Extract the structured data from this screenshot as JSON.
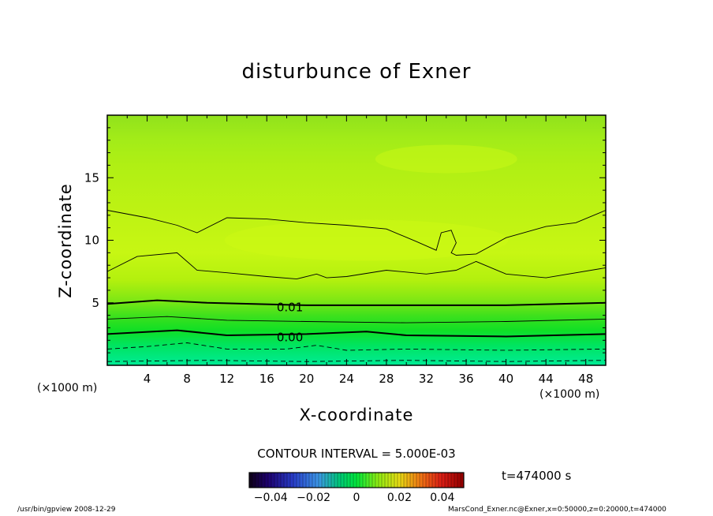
{
  "chart_data": {
    "type": "heatmap",
    "title": "disturbunce of Exner",
    "xlabel": "X-coordinate",
    "ylabel": "Z-coordinate",
    "x_unit": "(×1000 m)",
    "xlim": [
      0,
      50
    ],
    "ylim": [
      0,
      20
    ],
    "x_ticks": [
      4,
      8,
      12,
      16,
      20,
      24,
      28,
      32,
      36,
      40,
      44,
      48
    ],
    "y_ticks": [
      5,
      10,
      15
    ],
    "contour_interval_label": "CONTOUR INTERVAL = 5.000E-03",
    "contour_labels": [
      {
        "text": "0.01",
        "x": 17,
        "z": 4.7
      },
      {
        "text": "0.00",
        "x": 17,
        "z": 2.3
      }
    ],
    "contour_lines": [
      {
        "level": 0.015,
        "style": "solid",
        "points": [
          [
            0,
            7.5
          ],
          [
            3,
            8.7
          ],
          [
            7,
            9.0
          ],
          [
            9,
            7.6
          ],
          [
            12,
            7.4
          ],
          [
            16,
            7.1
          ],
          [
            19,
            6.9
          ],
          [
            21,
            7.3
          ],
          [
            22,
            7.0
          ],
          [
            24,
            7.1
          ],
          [
            28,
            7.6
          ],
          [
            32,
            7.3
          ],
          [
            35,
            7.6
          ],
          [
            37,
            8.3
          ],
          [
            40,
            7.3
          ],
          [
            44,
            7.0
          ],
          [
            50,
            7.8
          ]
        ]
      },
      {
        "level": 0.02,
        "style": "solid",
        "points": [
          [
            0,
            12.4
          ],
          [
            4,
            11.8
          ],
          [
            7,
            11.2
          ],
          [
            9,
            10.6
          ],
          [
            12,
            11.8
          ],
          [
            16,
            11.7
          ],
          [
            20,
            11.4
          ],
          [
            24,
            11.2
          ],
          [
            28,
            10.9
          ],
          [
            31,
            9.9
          ],
          [
            33,
            9.2
          ],
          [
            33.5,
            10.6
          ],
          [
            34.5,
            10.8
          ],
          [
            35,
            9.8
          ],
          [
            34.5,
            9.0
          ],
          [
            35,
            8.8
          ],
          [
            37,
            8.9
          ],
          [
            40,
            10.2
          ],
          [
            44,
            11.1
          ],
          [
            47,
            11.4
          ],
          [
            50,
            12.4
          ]
        ]
      },
      {
        "level": 0.01,
        "style": "bold",
        "points": [
          [
            0,
            4.9
          ],
          [
            5,
            5.2
          ],
          [
            10,
            5.0
          ],
          [
            20,
            4.8
          ],
          [
            30,
            4.8
          ],
          [
            40,
            4.8
          ],
          [
            50,
            5.0
          ]
        ]
      },
      {
        "level": 0.005,
        "style": "solid",
        "points": [
          [
            0,
            3.7
          ],
          [
            6,
            3.9
          ],
          [
            12,
            3.6
          ],
          [
            20,
            3.5
          ],
          [
            30,
            3.4
          ],
          [
            40,
            3.5
          ],
          [
            50,
            3.7
          ]
        ]
      },
      {
        "level": 0.0,
        "style": "bold",
        "points": [
          [
            0,
            2.5
          ],
          [
            7,
            2.8
          ],
          [
            12,
            2.4
          ],
          [
            20,
            2.5
          ],
          [
            26,
            2.7
          ],
          [
            30,
            2.4
          ],
          [
            40,
            2.3
          ],
          [
            50,
            2.5
          ]
        ]
      },
      {
        "level": -0.005,
        "style": "dashed",
        "points": [
          [
            0,
            1.3
          ],
          [
            4,
            1.5
          ],
          [
            8,
            1.8
          ],
          [
            12,
            1.3
          ],
          [
            18,
            1.3
          ],
          [
            21,
            1.6
          ],
          [
            24,
            1.2
          ],
          [
            30,
            1.3
          ],
          [
            40,
            1.2
          ],
          [
            50,
            1.3
          ]
        ]
      },
      {
        "level": -0.01,
        "style": "dashed",
        "points": [
          [
            0,
            0.3
          ],
          [
            10,
            0.4
          ],
          [
            20,
            0.3
          ],
          [
            30,
            0.4
          ],
          [
            40,
            0.3
          ],
          [
            50,
            0.4
          ]
        ]
      }
    ],
    "colorbar": {
      "min": -0.05,
      "max": 0.05,
      "tick_labels": [
        "−0.04",
        "−0.02",
        "0",
        "0.02",
        "0.04"
      ],
      "tick_values": [
        -0.04,
        -0.02,
        0,
        0.02,
        0.04
      ]
    },
    "colors": {
      "top": "#90e31c",
      "mid": "#c8f813",
      "low": "#00e545",
      "bottom": "#00eb96"
    }
  },
  "time_label": "t=474000 s",
  "footer_left": "/usr/bin/gpview   2008-12-29",
  "footer_right": "MarsCond_Exner.nc@Exner,x=0:50000,z=0:20000,t=474000"
}
